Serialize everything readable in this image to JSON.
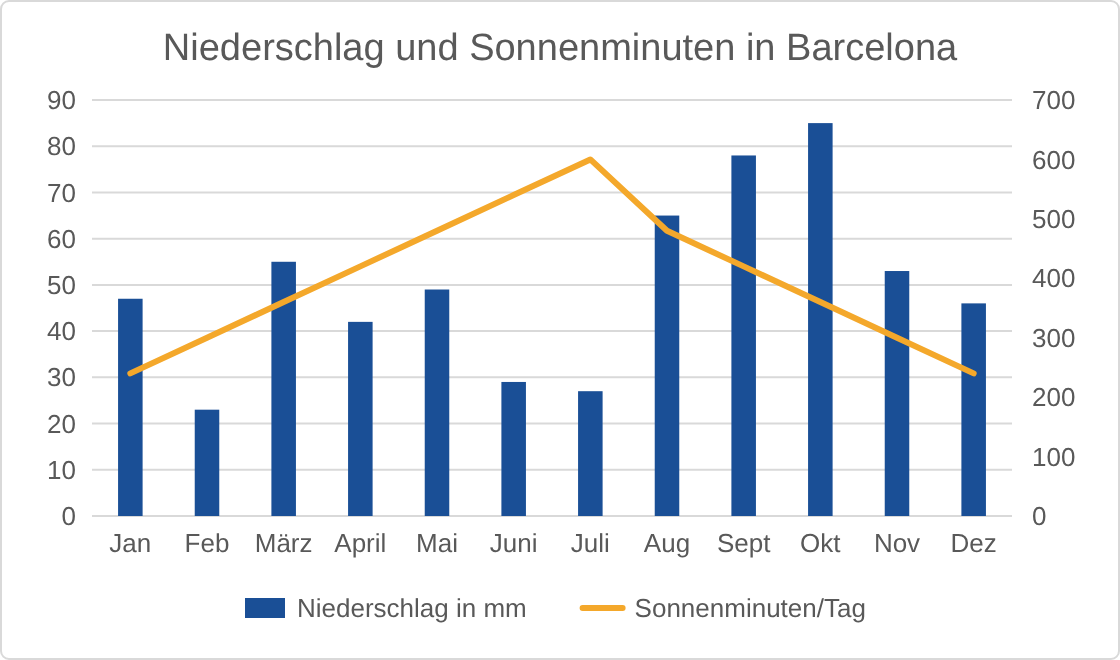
{
  "chart_data": {
    "type": "bar",
    "title": "Niederschlag und Sonnenminuten in Barcelona",
    "categories": [
      "Jan",
      "Feb",
      "März",
      "April",
      "Mai",
      "Juni",
      "Juli",
      "Aug",
      "Sept",
      "Okt",
      "Nov",
      "Dez"
    ],
    "series": [
      {
        "name": "Niederschlag in mm",
        "color": "#1a4f96",
        "values": [
          47,
          23,
          55,
          42,
          49,
          29,
          27,
          65,
          78,
          85,
          53,
          46
        ]
      },
      {
        "name": "Sonnenminuten/Tag",
        "type": "line",
        "axis": "y2",
        "color": "#f4a82b",
        "values": [
          240,
          300,
          360,
          420,
          480,
          540,
          600,
          480,
          420,
          360,
          300,
          240
        ]
      }
    ],
    "ylim": [
      0,
      90
    ],
    "yticks": [
      0,
      10,
      20,
      30,
      40,
      50,
      60,
      70,
      80,
      90
    ],
    "y2lim": [
      0,
      700
    ],
    "y2ticks": [
      0,
      100,
      200,
      300,
      400,
      500,
      600,
      700
    ],
    "grid": "y",
    "legend": "bottom"
  }
}
